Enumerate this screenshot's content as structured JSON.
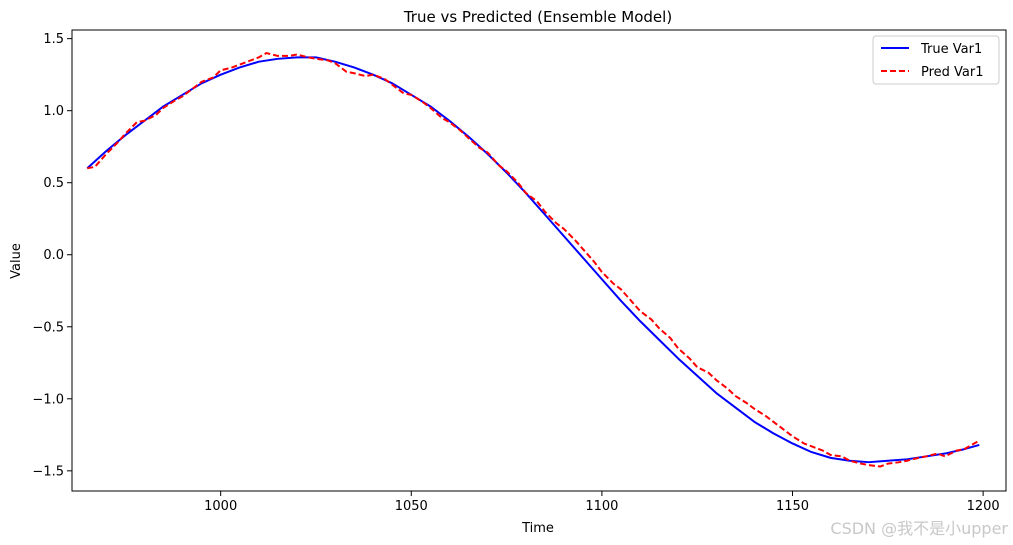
{
  "chart_data": {
    "type": "line",
    "title": "True vs Predicted (Ensemble Model)",
    "xlabel": "Time",
    "ylabel": "Value",
    "xlim": [
      961,
      1206
    ],
    "ylim": [
      -1.64,
      1.56
    ],
    "xticks": [
      1000,
      1050,
      1100,
      1150,
      1200
    ],
    "xtick_labels": [
      "1000",
      "1050",
      "1100",
      "1150",
      "1200"
    ],
    "yticks": [
      1.5,
      1.0,
      0.5,
      0.0,
      -0.5,
      -1.0,
      -1.5
    ],
    "ytick_labels": [
      "1.5",
      "1.0",
      "0.5",
      "0.0",
      "−0.5",
      "−1.0",
      "−1.5"
    ],
    "grid": false,
    "legend_position": "top-right",
    "series": [
      {
        "name": "True Var1",
        "color": "#0000ff",
        "style": "solid",
        "x": [
          965,
          970,
          975,
          980,
          985,
          990,
          995,
          1000,
          1005,
          1010,
          1015,
          1020,
          1025,
          1030,
          1035,
          1040,
          1045,
          1050,
          1055,
          1060,
          1065,
          1070,
          1075,
          1080,
          1085,
          1090,
          1095,
          1100,
          1105,
          1110,
          1115,
          1120,
          1125,
          1130,
          1135,
          1140,
          1145,
          1150,
          1155,
          1160,
          1165,
          1170,
          1175,
          1180,
          1185,
          1190,
          1195,
          1199
        ],
        "y": [
          0.6,
          0.72,
          0.83,
          0.93,
          1.03,
          1.11,
          1.19,
          1.25,
          1.3,
          1.34,
          1.36,
          1.37,
          1.37,
          1.34,
          1.3,
          1.25,
          1.19,
          1.11,
          1.03,
          0.93,
          0.82,
          0.7,
          0.57,
          0.43,
          0.28,
          0.13,
          -0.02,
          -0.17,
          -0.32,
          -0.46,
          -0.59,
          -0.72,
          -0.84,
          -0.96,
          -1.06,
          -1.16,
          -1.24,
          -1.31,
          -1.37,
          -1.41,
          -1.43,
          -1.44,
          -1.43,
          -1.42,
          -1.4,
          -1.38,
          -1.35,
          -1.32
        ]
      },
      {
        "name": "Pred Var1",
        "color": "#ff0000",
        "style": "dashed",
        "x": [
          965,
          967,
          970,
          973,
          975,
          978,
          980,
          983,
          985,
          988,
          990,
          993,
          995,
          998,
          1000,
          1003,
          1005,
          1008,
          1010,
          1012,
          1015,
          1018,
          1020,
          1023,
          1025,
          1028,
          1030,
          1033,
          1035,
          1038,
          1040,
          1043,
          1045,
          1048,
          1050,
          1053,
          1055,
          1058,
          1060,
          1063,
          1065,
          1068,
          1070,
          1073,
          1075,
          1078,
          1080,
          1083,
          1085,
          1088,
          1090,
          1093,
          1095,
          1098,
          1100,
          1103,
          1105,
          1108,
          1110,
          1113,
          1115,
          1118,
          1120,
          1123,
          1125,
          1128,
          1130,
          1133,
          1135,
          1138,
          1140,
          1143,
          1145,
          1148,
          1150,
          1153,
          1155,
          1158,
          1160,
          1163,
          1165,
          1168,
          1170,
          1173,
          1175,
          1178,
          1180,
          1183,
          1185,
          1188,
          1190,
          1193,
          1195,
          1199
        ],
        "y": [
          0.6,
          0.61,
          0.7,
          0.78,
          0.84,
          0.92,
          0.93,
          0.97,
          1.02,
          1.07,
          1.1,
          1.16,
          1.2,
          1.23,
          1.28,
          1.3,
          1.32,
          1.35,
          1.37,
          1.4,
          1.38,
          1.38,
          1.39,
          1.37,
          1.36,
          1.35,
          1.33,
          1.27,
          1.26,
          1.24,
          1.25,
          1.22,
          1.18,
          1.12,
          1.11,
          1.06,
          1.02,
          0.95,
          0.92,
          0.86,
          0.81,
          0.74,
          0.71,
          0.62,
          0.58,
          0.5,
          0.43,
          0.37,
          0.3,
          0.22,
          0.18,
          0.1,
          0.04,
          -0.05,
          -0.12,
          -0.2,
          -0.24,
          -0.33,
          -0.39,
          -0.45,
          -0.51,
          -0.58,
          -0.65,
          -0.72,
          -0.78,
          -0.82,
          -0.87,
          -0.93,
          -0.98,
          -1.03,
          -1.07,
          -1.12,
          -1.16,
          -1.22,
          -1.26,
          -1.31,
          -1.33,
          -1.36,
          -1.39,
          -1.4,
          -1.43,
          -1.45,
          -1.46,
          -1.47,
          -1.45,
          -1.44,
          -1.43,
          -1.41,
          -1.4,
          -1.38,
          -1.4,
          -1.36,
          -1.35,
          -1.29
        ]
      }
    ]
  },
  "watermark": "CSDN @我不是小upper"
}
